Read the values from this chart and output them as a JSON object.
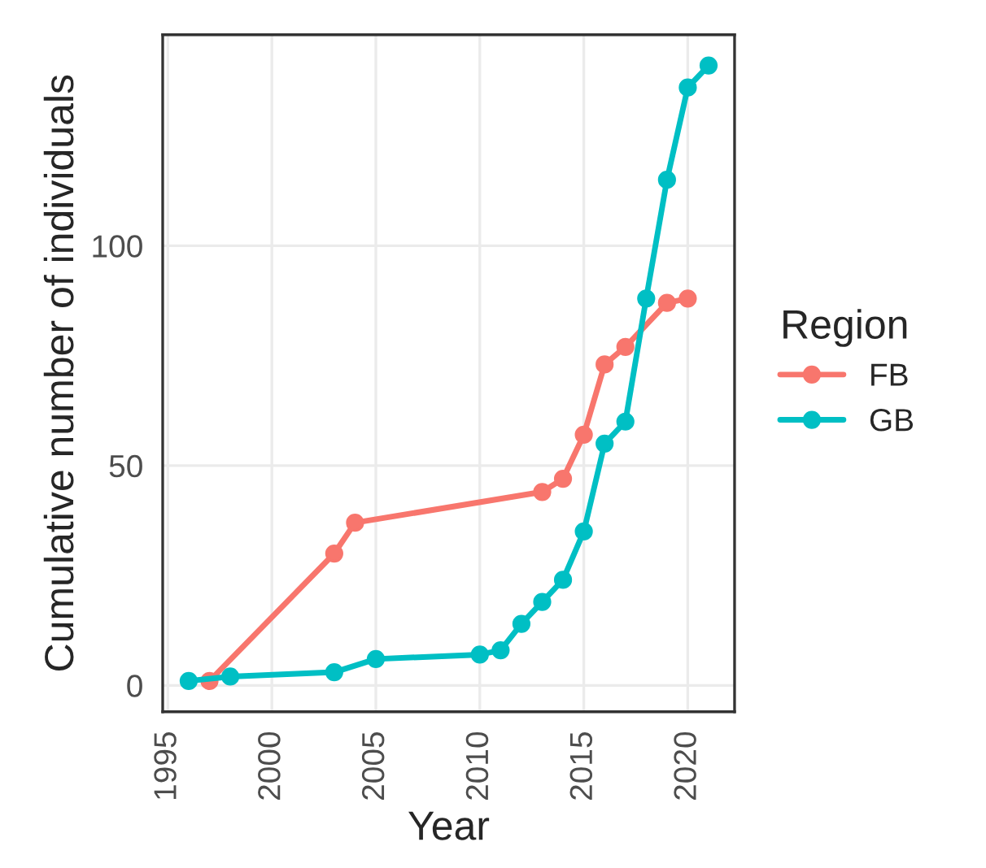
{
  "chart_data": {
    "type": "line",
    "xlabel": "Year",
    "ylabel": "Cumulative number of individuals",
    "legend_title": "Region",
    "legend": "right",
    "grid": true,
    "marker": "circle",
    "line_style": "solid",
    "xlim": [
      1994.75,
      2022.25
    ],
    "xticks": [
      1995,
      2000,
      2005,
      2010,
      2015,
      2020
    ],
    "ylim": [
      -6,
      148
    ],
    "yticks": [
      0,
      50,
      100
    ],
    "series": [
      {
        "name": "FB",
        "color": "#f8766d",
        "x": [
          1997,
          2003,
          2004,
          2013,
          2014,
          2015,
          2016,
          2017,
          2019,
          2020
        ],
        "values": [
          1,
          30,
          37,
          44,
          47,
          57,
          73,
          77,
          87,
          88
        ]
      },
      {
        "name": "GB",
        "color": "#00bfc4",
        "x": [
          1996,
          1998,
          2003,
          2005,
          2010,
          2011,
          2012,
          2013,
          2014,
          2015,
          2016,
          2017,
          2018,
          2019,
          2020,
          2021
        ],
        "values": [
          1,
          2,
          3,
          6,
          7,
          8,
          14,
          19,
          24,
          35,
          55,
          60,
          88,
          115,
          136,
          141
        ]
      }
    ]
  }
}
